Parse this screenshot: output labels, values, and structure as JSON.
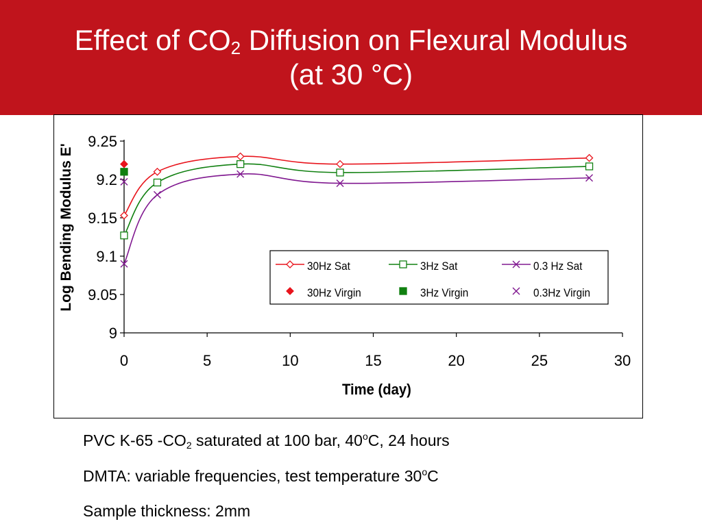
{
  "header": {
    "title_main": "Effect of CO",
    "title_sub": "2",
    "title_rest": " Diffusion on Flexural Modulus",
    "title_line2": "(at 30 °C)",
    "background": "#c0141c"
  },
  "notes": [
    {
      "pre": "PVC K-65 -CO",
      "sub": "2",
      "mid": " saturated at 100 bar, 40",
      "sup": "o",
      "post": "C, 24 hours"
    },
    {
      "pre": "DMTA: variable frequencies, test temperature 30",
      "sup": "o",
      "post": "C"
    },
    {
      "pre": "Sample thickness: 2mm"
    }
  ],
  "chart_data": {
    "type": "line",
    "xlabel": "Time (day)",
    "ylabel": "Log Bending  Modulus E'",
    "xlim": [
      0,
      30
    ],
    "ylim": [
      9,
      9.25
    ],
    "xticks": [
      0,
      5,
      10,
      15,
      20,
      25,
      30
    ],
    "yticks": [
      9,
      9.05,
      9.1,
      9.15,
      9.2,
      9.25
    ],
    "ytick_labels": [
      "9",
      "9.05",
      "9.1",
      "9.15",
      "9.2",
      "9.25"
    ],
    "grid": false,
    "legend_position": "bottom-right",
    "series": [
      {
        "name": "30Hz Sat",
        "color": "#e8141c",
        "marker": "diamond-open",
        "line": true,
        "x": [
          0,
          2,
          7,
          13,
          28
        ],
        "y": [
          9.153,
          9.21,
          9.23,
          9.22,
          9.228
        ]
      },
      {
        "name": "3Hz Sat",
        "color": "#108010",
        "marker": "square-open",
        "line": true,
        "x": [
          0,
          2,
          7,
          13,
          28
        ],
        "y": [
          9.127,
          9.196,
          9.22,
          9.209,
          9.217
        ]
      },
      {
        "name": "0.3 Hz  Sat",
        "color": "#801890",
        "marker": "x",
        "line": true,
        "x": [
          0,
          2,
          7,
          13,
          28
        ],
        "y": [
          9.09,
          9.18,
          9.207,
          9.195,
          9.202
        ]
      },
      {
        "name": "30Hz Virgin",
        "color": "#e8141c",
        "marker": "diamond-filled",
        "line": false,
        "x": [
          0
        ],
        "y": [
          9.22
        ]
      },
      {
        "name": "3Hz Virgin",
        "color": "#108010",
        "marker": "square-filled",
        "line": false,
        "x": [
          0
        ],
        "y": [
          9.21
        ]
      },
      {
        "name": "0.3Hz Virgin",
        "color": "#801890",
        "marker": "x",
        "line": false,
        "x": [
          0
        ],
        "y": [
          9.197
        ]
      }
    ]
  }
}
